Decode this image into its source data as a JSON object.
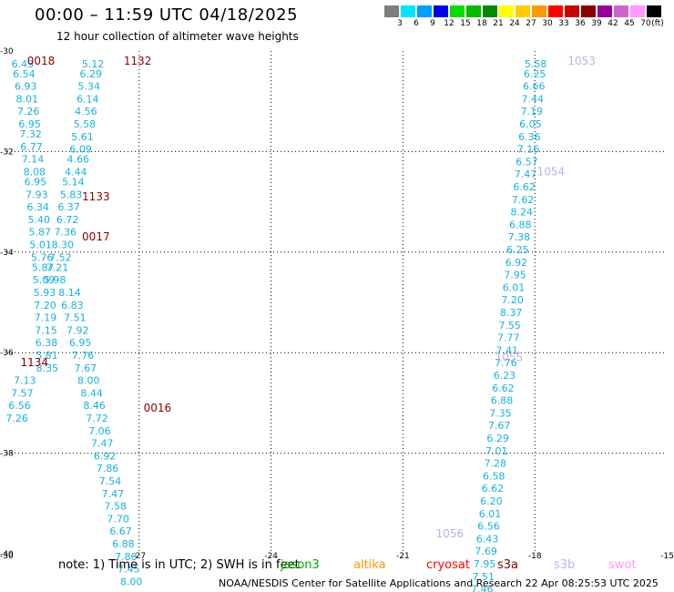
{
  "header": {
    "title": "00:00 – 11:59 UTC 04/18/2025",
    "subtitle": "12 hour collection of altimeter wave heights"
  },
  "colorbar": {
    "unit_label": "(ft)",
    "bins": [
      {
        "label": "3",
        "color": "#7f7f7f"
      },
      {
        "label": "6",
        "color": "#00e5ff"
      },
      {
        "label": "9",
        "color": "#00a0ff"
      },
      {
        "label": "12",
        "color": "#0000ee"
      },
      {
        "label": "15",
        "color": "#00dd00"
      },
      {
        "label": "18",
        "color": "#00bb00"
      },
      {
        "label": "21",
        "color": "#008800"
      },
      {
        "label": "24",
        "color": "#ffff00"
      },
      {
        "label": "27",
        "color": "#ffcc00"
      },
      {
        "label": "30",
        "color": "#ff9900"
      },
      {
        "label": "33",
        "color": "#ff0000"
      },
      {
        "label": "36",
        "color": "#cc0000"
      },
      {
        "label": "39",
        "color": "#880000"
      },
      {
        "label": "42",
        "color": "#990099"
      },
      {
        "label": "45",
        "color": "#cc66cc"
      },
      {
        "label": "70",
        "color": "#ff99ff"
      },
      {
        "label": "",
        "color": "#000000"
      }
    ]
  },
  "chart_data": {
    "type": "scatter",
    "title": "00:00 – 11:59 UTC 04/18/2025",
    "subtitle": "12 hour collection of altimeter wave heights",
    "xlim": [
      -30,
      -15
    ],
    "ylim": [
      -40,
      -30
    ],
    "x_ticks": [
      "-30",
      "-27",
      "-24",
      "-21",
      "-18",
      "-15"
    ],
    "y_ticks": [
      "-30",
      "-32",
      "-34",
      "-36",
      "-38",
      "-40"
    ],
    "grid": "dotted",
    "pass_labels": [
      {
        "text": "0018",
        "lon": -29.55,
        "lat": -30.2,
        "color": "#880000"
      },
      {
        "text": "1132",
        "lon": -27.35,
        "lat": -30.2,
        "color": "#880000"
      },
      {
        "text": "1133",
        "lon": -28.3,
        "lat": -32.9,
        "color": "#880000"
      },
      {
        "text": "0017",
        "lon": -28.3,
        "lat": -33.7,
        "color": "#880000"
      },
      {
        "text": "1134",
        "lon": -29.7,
        "lat": -36.2,
        "color": "#880000"
      },
      {
        "text": "0016",
        "lon": -26.9,
        "lat": -37.1,
        "color": "#880000"
      },
      {
        "text": "1053",
        "lon": -17.25,
        "lat": -30.2,
        "color": "#c0b0e8"
      },
      {
        "text": "1054",
        "lon": -17.95,
        "lat": -32.4,
        "color": "#c0b0e8"
      },
      {
        "text": "1055",
        "lon": -18.9,
        "lat": -36.1,
        "color": "#c0b0e8"
      },
      {
        "text": "1056",
        "lon": -20.25,
        "lat": -39.6,
        "color": "#c0b0e8"
      }
    ],
    "series": [
      {
        "name": "track 0018",
        "points": [
          {
            "lon": -29.65,
            "lat": -30.25,
            "value": "6.43"
          },
          {
            "lon": -29.62,
            "lat": -30.45,
            "value": "6.54"
          },
          {
            "lon": -29.58,
            "lat": -30.7,
            "value": "6.93"
          },
          {
            "lon": -29.55,
            "lat": -30.95,
            "value": "8.01"
          },
          {
            "lon": -29.52,
            "lat": -31.2,
            "value": "7.26"
          },
          {
            "lon": -29.49,
            "lat": -31.45,
            "value": "6.95"
          },
          {
            "lon": -29.47,
            "lat": -31.65,
            "value": "7.32"
          },
          {
            "lon": -29.45,
            "lat": -31.9,
            "value": "6.77"
          },
          {
            "lon": -29.42,
            "lat": -32.15,
            "value": "7.14"
          },
          {
            "lon": -29.38,
            "lat": -32.4,
            "value": "8.08"
          },
          {
            "lon": -29.36,
            "lat": -32.6,
            "value": "6.95"
          },
          {
            "lon": -29.33,
            "lat": -32.85,
            "value": "7.93"
          },
          {
            "lon": -29.3,
            "lat": -33.1,
            "value": "6.34"
          },
          {
            "lon": -29.28,
            "lat": -33.35,
            "value": "5.40"
          },
          {
            "lon": -29.26,
            "lat": -33.6,
            "value": "5.87"
          },
          {
            "lon": -29.24,
            "lat": -33.85,
            "value": "5.01"
          },
          {
            "lon": -29.21,
            "lat": -34.1,
            "value": "5.76"
          },
          {
            "lon": -29.19,
            "lat": -34.3,
            "value": "5.87"
          },
          {
            "lon": -29.17,
            "lat": -34.55,
            "value": "5.09"
          },
          {
            "lon": -29.15,
            "lat": -34.8,
            "value": "5.93"
          },
          {
            "lon": -29.14,
            "lat": -35.05,
            "value": "7.20"
          },
          {
            "lon": -29.13,
            "lat": -35.3,
            "value": "7.19"
          },
          {
            "lon": -29.12,
            "lat": -35.55,
            "value": "7.15"
          },
          {
            "lon": -29.11,
            "lat": -35.8,
            "value": "6.38"
          },
          {
            "lon": -29.1,
            "lat": -36.05,
            "value": "5.81"
          },
          {
            "lon": -29.09,
            "lat": -36.3,
            "value": "8.35"
          }
        ]
      },
      {
        "name": "track 1132-1134",
        "points": [
          {
            "lon": -28.05,
            "lat": -30.25,
            "value": "5.12"
          },
          {
            "lon": -28.1,
            "lat": -30.45,
            "value": "6.29"
          },
          {
            "lon": -28.14,
            "lat": -30.7,
            "value": "5.34"
          },
          {
            "lon": -28.17,
            "lat": -30.95,
            "value": "6.14"
          },
          {
            "lon": -28.21,
            "lat": -31.2,
            "value": "4.56"
          },
          {
            "lon": -28.24,
            "lat": -31.45,
            "value": "5.58"
          },
          {
            "lon": -28.29,
            "lat": -31.7,
            "value": "5.61"
          },
          {
            "lon": -28.33,
            "lat": -31.95,
            "value": "6.09"
          },
          {
            "lon": -28.39,
            "lat": -32.15,
            "value": "4.66"
          },
          {
            "lon": -28.44,
            "lat": -32.4,
            "value": "4.44"
          },
          {
            "lon": -28.5,
            "lat": -32.6,
            "value": "5.14"
          },
          {
            "lon": -28.55,
            "lat": -32.85,
            "value": "5.83"
          },
          {
            "lon": -28.6,
            "lat": -33.1,
            "value": "6.37"
          },
          {
            "lon": -28.63,
            "lat": -33.35,
            "value": "6.72"
          },
          {
            "lon": -28.68,
            "lat": -33.6,
            "value": "7.36"
          },
          {
            "lon": -28.74,
            "lat": -33.85,
            "value": "8.30"
          },
          {
            "lon": -28.79,
            "lat": -34.1,
            "value": "7.52"
          },
          {
            "lon": -28.86,
            "lat": -34.3,
            "value": "7.21"
          },
          {
            "lon": -28.92,
            "lat": -34.55,
            "value": "5.98"
          }
        ]
      },
      {
        "name": "track 1134",
        "points": [
          {
            "lon": -29.6,
            "lat": -36.55,
            "value": "7.13"
          },
          {
            "lon": -29.66,
            "lat": -36.8,
            "value": "7.57"
          },
          {
            "lon": -29.72,
            "lat": -37.05,
            "value": "6.56"
          },
          {
            "lon": -29.78,
            "lat": -37.3,
            "value": "7.26"
          }
        ]
      },
      {
        "name": "track 0017-0016",
        "points": [
          {
            "lon": -28.58,
            "lat": -34.8,
            "value": "8.14"
          },
          {
            "lon": -28.52,
            "lat": -35.05,
            "value": "6.83"
          },
          {
            "lon": -28.46,
            "lat": -35.3,
            "value": "7.51"
          },
          {
            "lon": -28.4,
            "lat": -35.55,
            "value": "7.92"
          },
          {
            "lon": -28.34,
            "lat": -35.8,
            "value": "6.95"
          },
          {
            "lon": -28.28,
            "lat": -36.05,
            "value": "7.76"
          },
          {
            "lon": -28.22,
            "lat": -36.3,
            "value": "7.67"
          },
          {
            "lon": -28.15,
            "lat": -36.55,
            "value": "8.00"
          },
          {
            "lon": -28.08,
            "lat": -36.8,
            "value": "8.44"
          },
          {
            "lon": -28.02,
            "lat": -37.05,
            "value": "8.46"
          },
          {
            "lon": -27.96,
            "lat": -37.3,
            "value": "7.72"
          },
          {
            "lon": -27.9,
            "lat": -37.55,
            "value": "7.06"
          },
          {
            "lon": -27.84,
            "lat": -37.8,
            "value": "7.47"
          },
          {
            "lon": -27.78,
            "lat": -38.05,
            "value": "6.92"
          },
          {
            "lon": -27.72,
            "lat": -38.3,
            "value": "7.86"
          },
          {
            "lon": -27.66,
            "lat": -38.55,
            "value": "7.54"
          },
          {
            "lon": -27.6,
            "lat": -38.8,
            "value": "7.47"
          },
          {
            "lon": -27.54,
            "lat": -39.05,
            "value": "7.58"
          },
          {
            "lon": -27.48,
            "lat": -39.3,
            "value": "7.70"
          },
          {
            "lon": -27.42,
            "lat": -39.55,
            "value": "6.67"
          },
          {
            "lon": -27.36,
            "lat": -39.8,
            "value": "6.88"
          },
          {
            "lon": -27.3,
            "lat": -40.05,
            "value": "7.80"
          },
          {
            "lon": -27.24,
            "lat": -40.3,
            "value": "7.45"
          },
          {
            "lon": -27.18,
            "lat": -40.55,
            "value": "8.00"
          }
        ]
      },
      {
        "name": "track 1053-1056",
        "points": [
          {
            "lon": -17.98,
            "lat": -30.25,
            "value": "5.58"
          },
          {
            "lon": -18.0,
            "lat": -30.45,
            "value": "6.25"
          },
          {
            "lon": -18.02,
            "lat": -30.7,
            "value": "6.66"
          },
          {
            "lon": -18.05,
            "lat": -30.95,
            "value": "7.44"
          },
          {
            "lon": -18.07,
            "lat": -31.2,
            "value": "7.19"
          },
          {
            "lon": -18.1,
            "lat": -31.45,
            "value": "6.05"
          },
          {
            "lon": -18.12,
            "lat": -31.7,
            "value": "6.36"
          },
          {
            "lon": -18.15,
            "lat": -31.95,
            "value": "7.16"
          },
          {
            "lon": -18.18,
            "lat": -32.2,
            "value": "6.57"
          },
          {
            "lon": -18.21,
            "lat": -32.45,
            "value": "7.47"
          },
          {
            "lon": -18.24,
            "lat": -32.7,
            "value": "6.62"
          },
          {
            "lon": -18.27,
            "lat": -32.95,
            "value": "7.62"
          },
          {
            "lon": -18.3,
            "lat": -33.2,
            "value": "8.24"
          },
          {
            "lon": -18.33,
            "lat": -33.45,
            "value": "6.88"
          },
          {
            "lon": -18.36,
            "lat": -33.7,
            "value": "7.38"
          },
          {
            "lon": -18.39,
            "lat": -33.95,
            "value": "6.25"
          },
          {
            "lon": -18.42,
            "lat": -34.2,
            "value": "6.92"
          },
          {
            "lon": -18.45,
            "lat": -34.45,
            "value": "7.95"
          },
          {
            "lon": -18.48,
            "lat": -34.7,
            "value": "6.01"
          },
          {
            "lon": -18.51,
            "lat": -34.95,
            "value": "7.20"
          },
          {
            "lon": -18.54,
            "lat": -35.2,
            "value": "8.37"
          },
          {
            "lon": -18.57,
            "lat": -35.45,
            "value": "7.55"
          },
          {
            "lon": -18.6,
            "lat": -35.7,
            "value": "7.77"
          },
          {
            "lon": -18.63,
            "lat": -35.95,
            "value": "7.41"
          },
          {
            "lon": -18.66,
            "lat": -36.2,
            "value": "7.76"
          },
          {
            "lon": -18.69,
            "lat": -36.45,
            "value": "6.23"
          },
          {
            "lon": -18.72,
            "lat": -36.7,
            "value": "6.62"
          },
          {
            "lon": -18.75,
            "lat": -36.95,
            "value": "6.88"
          },
          {
            "lon": -18.78,
            "lat": -37.2,
            "value": "7.35"
          },
          {
            "lon": -18.81,
            "lat": -37.45,
            "value": "7.67"
          },
          {
            "lon": -18.84,
            "lat": -37.7,
            "value": "6.29"
          },
          {
            "lon": -18.87,
            "lat": -37.95,
            "value": "7.01"
          },
          {
            "lon": -18.9,
            "lat": -38.2,
            "value": "7.28"
          },
          {
            "lon": -18.93,
            "lat": -38.45,
            "value": "6.58"
          },
          {
            "lon": -18.96,
            "lat": -38.7,
            "value": "6.62"
          },
          {
            "lon": -18.99,
            "lat": -38.95,
            "value": "6.20"
          },
          {
            "lon": -19.02,
            "lat": -39.2,
            "value": "6.01"
          },
          {
            "lon": -19.05,
            "lat": -39.45,
            "value": "6.56"
          },
          {
            "lon": -19.08,
            "lat": -39.7,
            "value": "6.43"
          },
          {
            "lon": -19.11,
            "lat": -39.95,
            "value": "7.69"
          },
          {
            "lon": -19.14,
            "lat": -40.2,
            "value": "7.95"
          },
          {
            "lon": -19.17,
            "lat": -40.45,
            "value": "7.51"
          },
          {
            "lon": -19.2,
            "lat": -40.7,
            "value": "7.46"
          }
        ]
      }
    ]
  },
  "note": {
    "text": "note:  1) Time is in UTC; 2) SWH is in feet",
    "satellites": [
      {
        "name": "jason3",
        "color": "#00aa00"
      },
      {
        "name": "altika",
        "color": "#ff9900"
      },
      {
        "name": "cryosat",
        "color": "#ff0000"
      },
      {
        "name": "s3a",
        "color": "#880000"
      },
      {
        "name": "s3b",
        "color": "#c0b0e8"
      },
      {
        "name": "swot",
        "color": "#ff99ff"
      }
    ]
  },
  "footer": {
    "text": "NOAA/NESDIS Center for Satellite Applications and Research     22 Apr 08:25:53 UTC 2025"
  }
}
